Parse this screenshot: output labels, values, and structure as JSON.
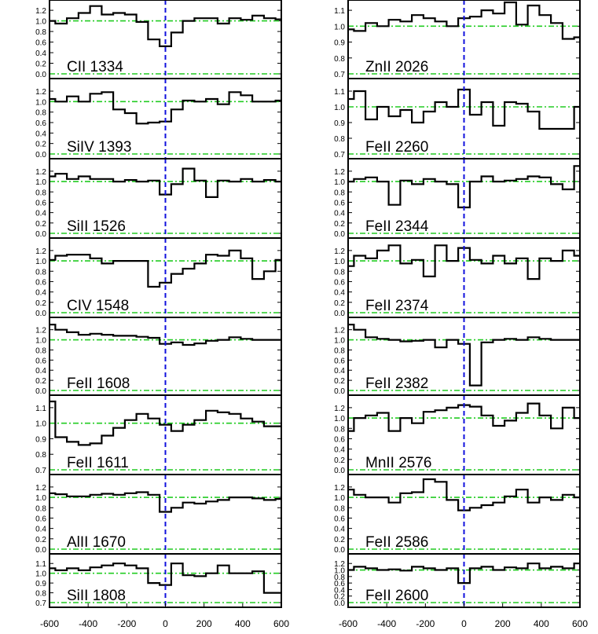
{
  "figure": {
    "x_ticks": [
      "-600",
      "-400",
      "-200",
      "0",
      "200",
      "400",
      "600"
    ]
  },
  "colors": {
    "spectrum": "#000000",
    "continuum": "#22cc22",
    "zero_velocity": "#1010dd",
    "frame": "#000000"
  },
  "chart_data": [
    {
      "type": "line",
      "label": "CII 1334",
      "xlim": [
        -600,
        600
      ],
      "ylim": [
        0,
        1.35
      ],
      "yticks": [
        "0.0",
        "0.2",
        "0.4",
        "0.6",
        "0.8",
        "1.0",
        "1.2"
      ],
      "ytick_values": [
        0,
        0.2,
        0.4,
        0.6,
        0.8,
        1.0,
        1.2
      ],
      "guides": [
        0,
        1
      ],
      "x": [
        -600,
        -540,
        -480,
        -420,
        -360,
        -300,
        -240,
        -180,
        -120,
        -60,
        0,
        60,
        120,
        180,
        240,
        300,
        360,
        420,
        480,
        540,
        600
      ],
      "y": [
        1.0,
        0.95,
        1.05,
        1.15,
        1.28,
        1.12,
        1.15,
        1.12,
        0.98,
        0.65,
        0.52,
        0.78,
        1.0,
        1.05,
        1.05,
        0.95,
        1.05,
        1.02,
        1.1,
        1.05,
        1.03
      ]
    },
    {
      "type": "line",
      "label": "ZnII 2026",
      "xlim": [
        -600,
        600
      ],
      "ylim": [
        0.7,
        1.15
      ],
      "yticks": [
        "0.7",
        "0.8",
        "0.9",
        "1.0",
        "1.1"
      ],
      "ytick_values": [
        0.7,
        0.8,
        0.9,
        1.0,
        1.1
      ],
      "guides": [
        0.7,
        1
      ],
      "x": [
        -600,
        -540,
        -480,
        -420,
        -360,
        -300,
        -240,
        -180,
        -120,
        -60,
        0,
        60,
        120,
        180,
        240,
        300,
        360,
        420,
        480,
        540,
        600
      ],
      "y": [
        0.98,
        0.97,
        1.02,
        1.0,
        1.04,
        1.03,
        1.07,
        1.05,
        1.03,
        1.0,
        1.05,
        1.06,
        1.1,
        1.08,
        1.15,
        1.01,
        1.13,
        1.07,
        1.02,
        0.92,
        0.93
      ]
    },
    {
      "type": "line",
      "label": "SiIV 1393",
      "xlim": [
        -600,
        600
      ],
      "ylim": [
        0,
        1.35
      ],
      "yticks": [
        "0.0",
        "0.2",
        "0.4",
        "0.6",
        "0.8",
        "1.0",
        "1.2"
      ],
      "ytick_values": [
        0,
        0.2,
        0.4,
        0.6,
        0.8,
        1.0,
        1.2
      ],
      "guides": [
        0,
        1
      ],
      "x": [
        -600,
        -540,
        -480,
        -420,
        -360,
        -300,
        -240,
        -180,
        -120,
        -60,
        0,
        60,
        120,
        180,
        240,
        300,
        360,
        420,
        480,
        540,
        600
      ],
      "y": [
        1.05,
        1.0,
        1.1,
        1.0,
        1.15,
        1.18,
        0.85,
        0.78,
        0.58,
        0.6,
        0.62,
        0.85,
        1.02,
        1.0,
        1.05,
        0.95,
        1.18,
        1.12,
        1.0,
        1.0,
        1.02
      ]
    },
    {
      "type": "line",
      "label": "FeII 2260",
      "xlim": [
        -600,
        600
      ],
      "ylim": [
        0.7,
        1.15
      ],
      "yticks": [
        "0.7",
        "0.8",
        "0.9",
        "1.0",
        "1.1"
      ],
      "ytick_values": [
        0.7,
        0.8,
        0.9,
        1.0,
        1.1
      ],
      "guides": [
        0.7,
        1
      ],
      "x": [
        -600,
        -540,
        -480,
        -420,
        -360,
        -300,
        -240,
        -180,
        -120,
        -60,
        0,
        60,
        120,
        180,
        240,
        300,
        360,
        420,
        480,
        540,
        600
      ],
      "y": [
        1.05,
        1.1,
        0.92,
        1.0,
        0.94,
        0.98,
        0.9,
        0.97,
        1.03,
        1.0,
        1.11,
        0.95,
        1.03,
        0.88,
        1.03,
        1.02,
        0.97,
        0.86,
        0.86,
        0.86,
        1.0
      ]
    },
    {
      "type": "line",
      "label": "SiII 1526",
      "xlim": [
        -600,
        600
      ],
      "ylim": [
        0,
        1.35
      ],
      "yticks": [
        "0.0",
        "0.2",
        "0.4",
        "0.6",
        "0.8",
        "1.0",
        "1.2"
      ],
      "ytick_values": [
        0,
        0.2,
        0.4,
        0.6,
        0.8,
        1.0,
        1.2
      ],
      "guides": [
        0,
        1
      ],
      "x": [
        -600,
        -540,
        -480,
        -420,
        -360,
        -300,
        -240,
        -180,
        -120,
        -60,
        0,
        60,
        120,
        180,
        240,
        300,
        360,
        420,
        480,
        540,
        600
      ],
      "y": [
        1.1,
        1.15,
        1.05,
        1.1,
        1.05,
        1.05,
        1.0,
        1.03,
        1.0,
        1.02,
        0.75,
        0.95,
        1.25,
        1.02,
        0.7,
        1.02,
        1.0,
        1.05,
        1.0,
        1.03,
        1.0
      ]
    },
    {
      "type": "line",
      "label": "FeII 2344",
      "xlim": [
        -600,
        600
      ],
      "ylim": [
        0,
        1.35
      ],
      "yticks": [
        "0.0",
        "0.2",
        "0.4",
        "0.6",
        "0.8",
        "1.0",
        "1.2"
      ],
      "ytick_values": [
        0,
        0.2,
        0.4,
        0.6,
        0.8,
        1.0,
        1.2
      ],
      "guides": [
        0,
        1
      ],
      "x": [
        -600,
        -540,
        -480,
        -420,
        -360,
        -300,
        -240,
        -180,
        -120,
        -60,
        0,
        60,
        120,
        180,
        240,
        300,
        360,
        420,
        480,
        540,
        600
      ],
      "y": [
        1.0,
        1.05,
        1.08,
        1.0,
        0.55,
        1.02,
        0.95,
        1.05,
        1.0,
        0.95,
        0.5,
        1.0,
        1.1,
        1.0,
        1.02,
        1.05,
        1.1,
        1.08,
        0.95,
        0.85,
        1.3
      ]
    },
    {
      "type": "line",
      "label": "CIV 1548",
      "xlim": [
        -600,
        600
      ],
      "ylim": [
        0,
        1.35
      ],
      "yticks": [
        "0.0",
        "0.2",
        "0.4",
        "0.6",
        "0.8",
        "1.0",
        "1.2"
      ],
      "ytick_values": [
        0,
        0.2,
        0.4,
        0.6,
        0.8,
        1.0,
        1.2
      ],
      "guides": [
        0,
        1
      ],
      "x": [
        -600,
        -540,
        -480,
        -420,
        -360,
        -300,
        -240,
        -180,
        -120,
        -60,
        0,
        60,
        120,
        180,
        240,
        300,
        360,
        420,
        480,
        540,
        600
      ],
      "y": [
        1.02,
        1.1,
        1.12,
        1.12,
        1.05,
        0.95,
        1.0,
        1.0,
        1.0,
        0.5,
        0.58,
        0.75,
        0.85,
        0.95,
        1.12,
        1.1,
        1.2,
        1.05,
        0.65,
        0.8,
        1.02
      ]
    },
    {
      "type": "line",
      "label": "FeII 2374",
      "xlim": [
        -600,
        600
      ],
      "ylim": [
        0,
        1.35
      ],
      "yticks": [
        "0.0",
        "0.2",
        "0.4",
        "0.6",
        "0.8",
        "1.0",
        "1.2"
      ],
      "ytick_values": [
        0,
        0.2,
        0.4,
        0.6,
        0.8,
        1.0,
        1.2
      ],
      "guides": [
        0,
        1
      ],
      "x": [
        -600,
        -540,
        -480,
        -420,
        -360,
        -300,
        -240,
        -180,
        -120,
        -60,
        0,
        60,
        120,
        180,
        240,
        300,
        360,
        420,
        480,
        540,
        600
      ],
      "y": [
        0.9,
        1.1,
        1.05,
        1.2,
        1.3,
        0.95,
        1.02,
        0.7,
        1.3,
        1.0,
        1.25,
        1.02,
        0.95,
        1.1,
        0.95,
        1.05,
        0.65,
        1.05,
        1.0,
        1.2,
        1.1
      ]
    },
    {
      "type": "line",
      "label": "FeII 1608",
      "xlim": [
        -600,
        600
      ],
      "ylim": [
        0,
        1.35
      ],
      "yticks": [
        "0.0",
        "0.2",
        "0.4",
        "0.6",
        "0.8",
        "1.0",
        "1.2"
      ],
      "ytick_values": [
        0,
        0.2,
        0.4,
        0.6,
        0.8,
        1.0,
        1.2
      ],
      "guides": [
        0,
        1
      ],
      "x": [
        -600,
        -540,
        -480,
        -420,
        -360,
        -300,
        -240,
        -180,
        -120,
        -60,
        0,
        60,
        120,
        180,
        240,
        300,
        360,
        420,
        480,
        540,
        600
      ],
      "y": [
        1.3,
        1.2,
        1.15,
        1.1,
        1.12,
        1.1,
        1.08,
        1.08,
        1.06,
        1.04,
        0.92,
        0.95,
        0.9,
        0.93,
        0.98,
        1.0,
        1.05,
        1.02,
        1.0,
        1.0,
        1.0
      ]
    },
    {
      "type": "line",
      "label": "FeII 2382",
      "xlim": [
        -600,
        600
      ],
      "ylim": [
        0,
        1.35
      ],
      "yticks": [
        "0.0",
        "0.2",
        "0.4",
        "0.6",
        "0.8",
        "1.0",
        "1.2"
      ],
      "ytick_values": [
        0,
        0.2,
        0.4,
        0.6,
        0.8,
        1.0,
        1.2
      ],
      "guides": [
        0,
        1
      ],
      "x": [
        -600,
        -540,
        -480,
        -420,
        -360,
        -300,
        -240,
        -180,
        -120,
        -60,
        0,
        60,
        120,
        180,
        240,
        300,
        360,
        420,
        480,
        540,
        600
      ],
      "y": [
        1.3,
        1.2,
        1.05,
        1.02,
        1.0,
        0.97,
        0.98,
        1.0,
        0.85,
        1.0,
        0.92,
        0.1,
        0.95,
        1.0,
        1.02,
        1.0,
        1.05,
        1.02,
        1.0,
        1.0,
        1.0
      ]
    },
    {
      "type": "line",
      "label": "FeII 1611",
      "xlim": [
        -600,
        600
      ],
      "ylim": [
        0.7,
        1.15
      ],
      "yticks": [
        "0.7",
        "0.8",
        "0.9",
        "1.0",
        "1.1"
      ],
      "ytick_values": [
        0.7,
        0.8,
        0.9,
        1.0,
        1.1
      ],
      "guides": [
        0.7,
        1
      ],
      "x": [
        -600,
        -540,
        -480,
        -420,
        -360,
        -300,
        -240,
        -180,
        -120,
        -60,
        0,
        60,
        120,
        180,
        240,
        300,
        360,
        420,
        480,
        540,
        600
      ],
      "y": [
        1.14,
        0.91,
        0.88,
        0.86,
        0.87,
        0.92,
        0.97,
        1.02,
        1.06,
        1.03,
        0.99,
        0.95,
        0.99,
        1.02,
        1.08,
        1.07,
        1.06,
        1.03,
        1.01,
        0.98,
        0.98
      ]
    },
    {
      "type": "line",
      "label": "MnII 2576",
      "xlim": [
        -600,
        600
      ],
      "ylim": [
        0,
        1.35
      ],
      "yticks": [
        "0.0",
        "0.2",
        "0.4",
        "0.6",
        "0.8",
        "1.0",
        "1.2"
      ],
      "ytick_values": [
        0,
        0.2,
        0.4,
        0.6,
        0.8,
        1.0,
        1.2
      ],
      "guides": [
        0,
        1
      ],
      "x": [
        -600,
        -540,
        -480,
        -420,
        -360,
        -300,
        -240,
        -180,
        -120,
        -60,
        0,
        60,
        120,
        180,
        240,
        300,
        360,
        420,
        480,
        540,
        600
      ],
      "y": [
        0.75,
        1.0,
        1.05,
        1.1,
        0.75,
        1.0,
        0.9,
        1.12,
        1.15,
        1.2,
        1.25,
        1.22,
        1.05,
        0.85,
        0.95,
        1.1,
        1.28,
        1.05,
        0.8,
        1.2,
        1.0
      ]
    },
    {
      "type": "line",
      "label": "AlII 1670",
      "xlim": [
        -600,
        600
      ],
      "ylim": [
        0,
        1.35
      ],
      "yticks": [
        "0.0",
        "0.2",
        "0.4",
        "0.6",
        "0.8",
        "1.0",
        "1.2"
      ],
      "ytick_values": [
        0,
        0.2,
        0.4,
        0.6,
        0.8,
        1.0,
        1.2
      ],
      "guides": [
        0,
        1
      ],
      "x": [
        -600,
        -540,
        -480,
        -420,
        -360,
        -300,
        -240,
        -180,
        -120,
        -60,
        0,
        60,
        120,
        180,
        240,
        300,
        360,
        420,
        480,
        540,
        600
      ],
      "y": [
        1.08,
        1.06,
        1.02,
        1.02,
        1.05,
        1.07,
        1.05,
        1.08,
        1.1,
        1.05,
        0.72,
        0.8,
        0.9,
        0.88,
        0.92,
        0.95,
        1.0,
        1.0,
        0.98,
        0.95,
        0.97
      ]
    },
    {
      "type": "line",
      "label": "FeII 2586",
      "xlim": [
        -600,
        600
      ],
      "ylim": [
        0,
        1.35
      ],
      "yticks": [
        "0.0",
        "0.2",
        "0.4",
        "0.6",
        "0.8",
        "1.0",
        "1.2"
      ],
      "ytick_values": [
        0,
        0.2,
        0.4,
        0.6,
        0.8,
        1.0,
        1.2
      ],
      "guides": [
        0,
        1
      ],
      "x": [
        -600,
        -540,
        -480,
        -420,
        -360,
        -300,
        -240,
        -180,
        -120,
        -60,
        0,
        60,
        120,
        180,
        240,
        300,
        360,
        420,
        480,
        540,
        600
      ],
      "y": [
        1.15,
        1.05,
        1.0,
        1.0,
        0.9,
        1.08,
        1.1,
        1.35,
        1.3,
        0.95,
        0.75,
        0.8,
        0.85,
        0.9,
        1.02,
        1.15,
        0.9,
        1.0,
        0.95,
        1.05,
        1.0
      ]
    },
    {
      "type": "line",
      "label": "SiII 1808",
      "xlim": [
        -600,
        600
      ],
      "ylim": [
        0.7,
        1.15
      ],
      "yticks": [
        "0.7",
        "0.8",
        "0.9",
        "1.0",
        "1.1"
      ],
      "ytick_values": [
        0.7,
        0.8,
        0.9,
        1.0,
        1.1
      ],
      "guides": [
        0.7,
        1
      ],
      "x": [
        -600,
        -540,
        -480,
        -420,
        -360,
        -300,
        -240,
        -180,
        -120,
        -60,
        0,
        60,
        120,
        180,
        240,
        300,
        360,
        420,
        480,
        540,
        600
      ],
      "y": [
        1.05,
        1.03,
        1.05,
        1.03,
        1.06,
        1.08,
        1.1,
        1.08,
        1.05,
        0.9,
        0.88,
        1.1,
        0.98,
        0.97,
        1.0,
        1.08,
        1.0,
        1.0,
        1.02,
        0.8,
        0.8
      ]
    },
    {
      "type": "line",
      "label": "FeII 2600",
      "xlim": [
        -600,
        600
      ],
      "ylim": [
        0,
        1.35
      ],
      "yticks": [
        "0.0",
        "0.2",
        "0.4",
        "0.6",
        "0.8",
        "1.0",
        "1.2"
      ],
      "ytick_values": [
        0,
        0.2,
        0.4,
        0.6,
        0.8,
        1.0,
        1.2
      ],
      "guides": [
        0,
        1
      ],
      "x": [
        -600,
        -540,
        -480,
        -420,
        -360,
        -300,
        -240,
        -180,
        -120,
        -60,
        0,
        60,
        120,
        180,
        240,
        300,
        360,
        420,
        480,
        540,
        600
      ],
      "y": [
        1.0,
        1.1,
        1.05,
        1.0,
        1.02,
        0.98,
        1.1,
        1.05,
        1.0,
        1.05,
        0.6,
        1.05,
        1.1,
        1.0,
        1.08,
        1.05,
        1.2,
        1.05,
        1.1,
        1.05,
        1.2
      ]
    }
  ]
}
